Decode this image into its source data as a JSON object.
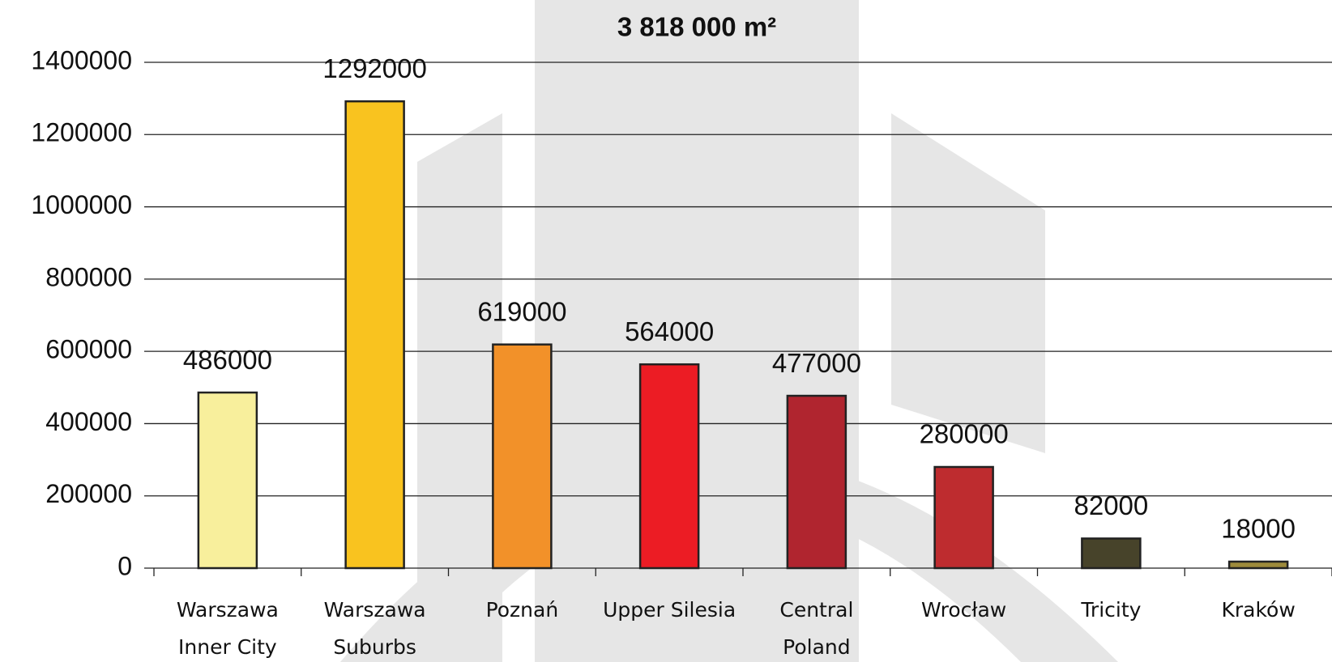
{
  "chart_data": {
    "type": "bar",
    "title": "3 818 000   m²",
    "categories": [
      [
        "Warszawa",
        "Inner City"
      ],
      [
        "Warszawa",
        "Suburbs"
      ],
      [
        "Poznań"
      ],
      [
        "Upper Silesia"
      ],
      [
        "Central",
        "Poland"
      ],
      [
        "Wrocław"
      ],
      [
        "Tricity"
      ],
      [
        "Kraków"
      ]
    ],
    "values": [
      486000,
      1292000,
      619000,
      564000,
      477000,
      280000,
      82000,
      18000
    ],
    "colors": [
      "#f8ef9c",
      "#f9c31f",
      "#f29129",
      "#ec1c24",
      "#b0252f",
      "#be2c2f",
      "#47432a",
      "#9d8a3b"
    ],
    "ylim": [
      0,
      1400000
    ],
    "yticks": [
      0,
      200000,
      400000,
      600000,
      800000,
      1000000,
      1200000,
      1400000
    ],
    "grid": true
  }
}
